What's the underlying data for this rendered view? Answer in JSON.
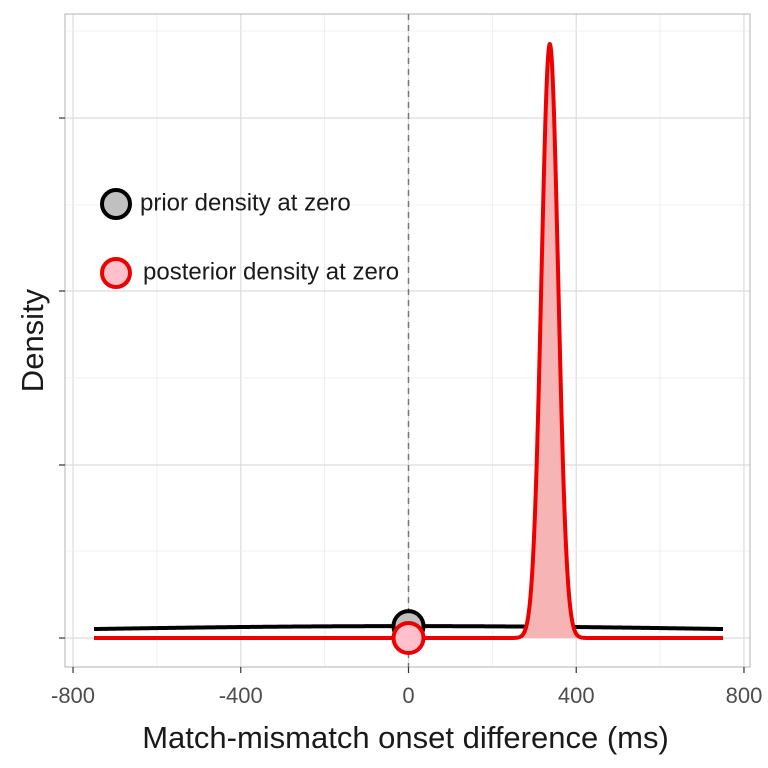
{
  "chart_data": {
    "type": "area",
    "xlabel": "Match-mismatch onset difference (ms)",
    "ylabel": "Density",
    "xlim": [
      -800,
      800
    ],
    "x_ticks": [
      -800,
      -400,
      0,
      400,
      800
    ],
    "x_tick_labels": [
      "-800",
      "-400",
      "0",
      "400",
      "800"
    ],
    "y_ticks_labeled": false,
    "grid": true,
    "reference_line": {
      "x": 0,
      "style": "dashed"
    },
    "series": [
      {
        "name": "prior",
        "distribution": "normal",
        "mean": 0,
        "sd": 1000,
        "x_range": [
          -750,
          750
        ],
        "color": "#000000",
        "fill": "none"
      },
      {
        "name": "posterior",
        "distribution": "normal",
        "mean": 337,
        "sd": 20,
        "x_range": [
          -750,
          750
        ],
        "color": "#ee0000",
        "fill": "#f7b4b4"
      }
    ],
    "points": [
      {
        "series": "prior",
        "x": 0,
        "label": "prior density at zero",
        "fill": "#c0c0c0",
        "stroke": "#000000"
      },
      {
        "series": "posterior",
        "x": 0,
        "label": "posterior density at zero",
        "fill": "#ffc0cb",
        "stroke": "#ee0000"
      }
    ],
    "legend": {
      "placement": "top-left",
      "items": [
        {
          "label": "prior density at zero",
          "fill": "#c0c0c0",
          "stroke": "#000000"
        },
        {
          "label": "posterior density at zero",
          "fill": "#ffc0cb",
          "stroke": "#ee0000"
        }
      ]
    }
  }
}
